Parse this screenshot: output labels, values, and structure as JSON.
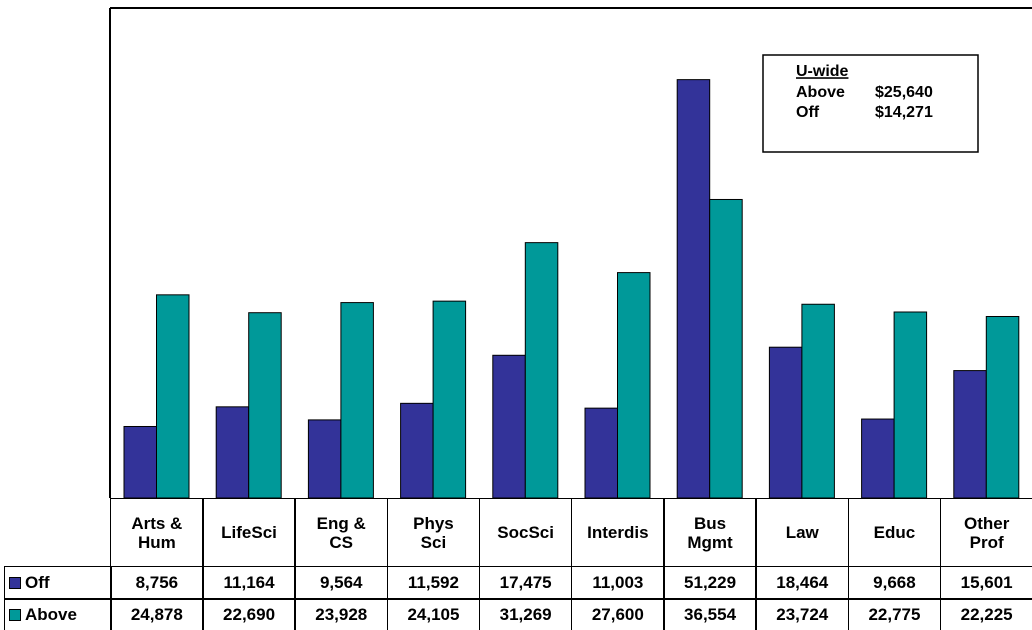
{
  "chart_data": {
    "type": "bar",
    "categories": [
      "Arts &\nHum",
      "LifeSci",
      "Eng &\nCS",
      "Phys\nSci",
      "SocSci",
      "Interdis",
      "Bus\nMgmt",
      "Law",
      "Educ",
      "Other\nProf"
    ],
    "series": [
      {
        "name": "Off",
        "color": "#333399",
        "values": [
          8756,
          11164,
          9564,
          11592,
          17475,
          11003,
          51229,
          18464,
          9668,
          15601
        ],
        "value_labels": [
          "8,756",
          "11,164",
          "9,564",
          "11,592",
          "17,475",
          "11,003",
          "51,229",
          "18,464",
          "9,668",
          "15,601"
        ]
      },
      {
        "name": "Above",
        "color": "#009999",
        "values": [
          24878,
          22690,
          23928,
          24105,
          31269,
          27600,
          36554,
          23724,
          22775,
          22225
        ],
        "value_labels": [
          "24,878",
          "22,690",
          "23,928",
          "24,105",
          "31,269",
          "27,600",
          "36,554",
          "23,724",
          "22,775",
          "22,225"
        ]
      }
    ],
    "ylim": [
      0,
      60000
    ],
    "annotation": {
      "title": "U-wide",
      "rows": [
        {
          "label": "Above",
          "value": "$25,640"
        },
        {
          "label": "Off",
          "value": "$14,271"
        }
      ]
    }
  }
}
